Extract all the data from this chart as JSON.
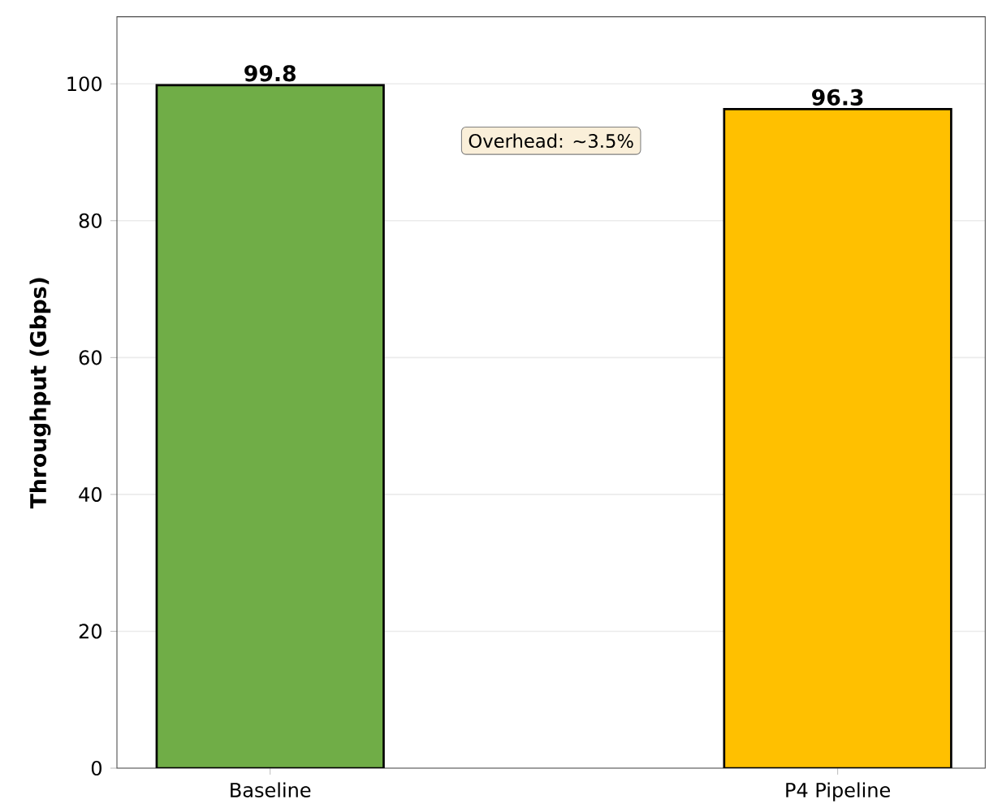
{
  "chart_data": {
    "type": "bar",
    "ylabel": "Throughput (Gbps)",
    "categories": [
      "Baseline",
      "P4 Pipeline"
    ],
    "values": [
      99.8,
      96.3
    ],
    "colors": [
      "#70ad47",
      "#ffc000"
    ],
    "ylim": [
      0,
      109.8
    ],
    "yticks": [
      0,
      20,
      40,
      60,
      80,
      100
    ],
    "grid": "y",
    "data_labels": true,
    "annotations": [
      "Overhead: ~3.5%"
    ]
  }
}
